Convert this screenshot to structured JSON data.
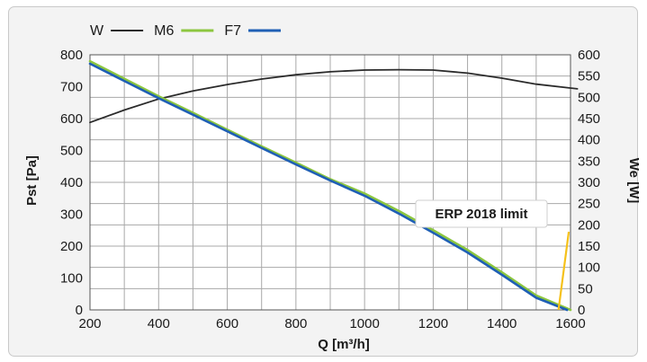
{
  "chart_data": {
    "type": "line",
    "x": [
      200,
      300,
      400,
      500,
      600,
      700,
      800,
      900,
      1000,
      1100,
      1200,
      1300,
      1400,
      1500,
      1600
    ],
    "xlabel": "Q [m³/h]",
    "ylabel": "Pst [Pa]",
    "y2label": "We [W]",
    "xlim": [
      200,
      1600
    ],
    "ylim": [
      0,
      800
    ],
    "y2lim": [
      0,
      600
    ],
    "xticks": [
      "200",
      "400",
      "600",
      "800",
      "1000",
      "1200",
      "1400",
      "1600"
    ],
    "yticks": [
      "0",
      "100",
      "200",
      "300",
      "400",
      "500",
      "600",
      "700",
      "800"
    ],
    "y2ticks": [
      "0",
      "50",
      "100",
      "150",
      "200",
      "250",
      "300",
      "350",
      "400",
      "450",
      "500",
      "550",
      "600"
    ],
    "grid": true,
    "legend_position": "top-left",
    "series": [
      {
        "name": "W",
        "axis": "right",
        "color": "#2b2b2b",
        "x": [
          200,
          300,
          400,
          500,
          600,
          700,
          800,
          900,
          1000,
          1100,
          1200,
          1300,
          1400,
          1500,
          1620
        ],
        "values": [
          441,
          470,
          496,
          515,
          530,
          543,
          553,
          560,
          564,
          565,
          564,
          557,
          545,
          531,
          520
        ]
      },
      {
        "name": "M6",
        "axis": "left",
        "color": "#8cc63f",
        "x": [
          200,
          300,
          400,
          500,
          600,
          700,
          800,
          900,
          1000,
          1100,
          1200,
          1300,
          1400,
          1500,
          1600
        ],
        "values": [
          780,
          725,
          670,
          618,
          565,
          513,
          462,
          410,
          365,
          310,
          250,
          188,
          118,
          45,
          0
        ]
      },
      {
        "name": "F7",
        "axis": "left",
        "color": "#1f5fb5",
        "x": [
          200,
          300,
          400,
          500,
          600,
          700,
          800,
          900,
          1000,
          1100,
          1200,
          1300,
          1400,
          1500,
          1590
        ],
        "values": [
          772,
          718,
          664,
          612,
          560,
          508,
          456,
          406,
          358,
          302,
          242,
          180,
          110,
          38,
          0
        ]
      }
    ],
    "annotations": [
      {
        "text": "ERP 2018 limit",
        "color": "#f5c11a",
        "line_from": [
          1595,
          245
        ],
        "line_to": [
          1565,
          0
        ]
      }
    ]
  }
}
